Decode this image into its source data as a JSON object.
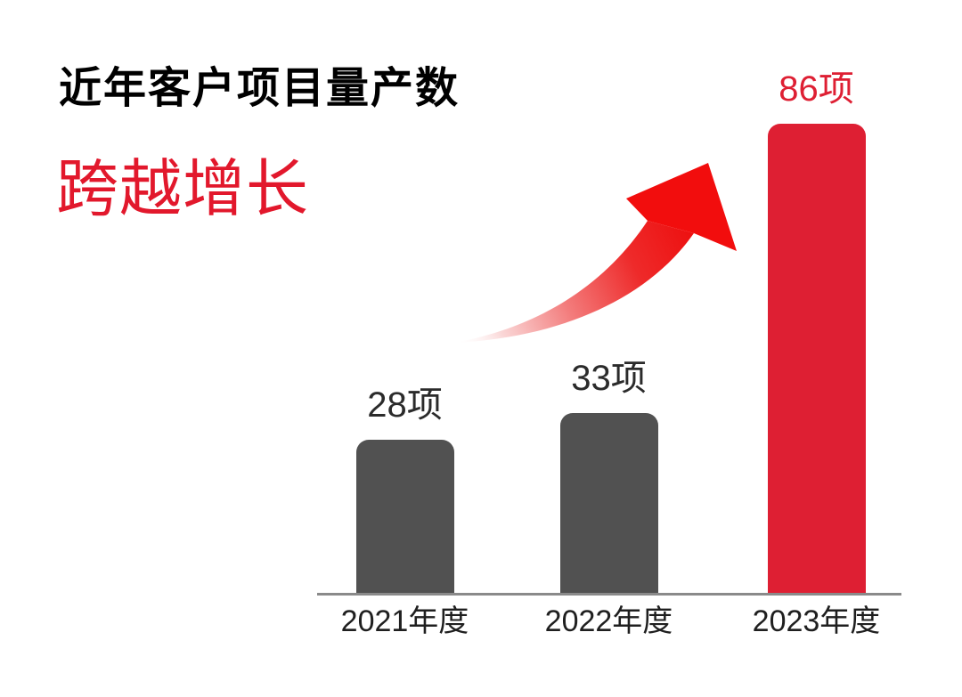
{
  "header": {
    "title": "近年客户项目量产数",
    "subtitle": "跨越增长"
  },
  "chart_data": {
    "type": "bar",
    "title": "近年客户项目量产数",
    "subtitle": "跨越增长",
    "categories": [
      "2021年度",
      "2022年度",
      "2023年度"
    ],
    "values": [
      28,
      33,
      86
    ],
    "data_labels": [
      "28项",
      "33项",
      "86项"
    ],
    "unit": "项",
    "ylim": [
      0,
      86
    ],
    "grid": false,
    "legend": "none",
    "bar_colors": [
      "#515151",
      "#515151",
      "#de1f33"
    ],
    "label_colors": [
      "#2b2b2b",
      "#2b2b2b",
      "#de1f33"
    ],
    "annotations": [
      "growth-arrow"
    ]
  },
  "colors": {
    "accent_red": "#de1f33",
    "subtitle_red": "#e2182c",
    "arrow_red": "#f20d0d",
    "bar_gray": "#515151",
    "axis_gray": "#8a8a8a",
    "title_black": "#000000",
    "label_dark": "#2b2b2b"
  }
}
